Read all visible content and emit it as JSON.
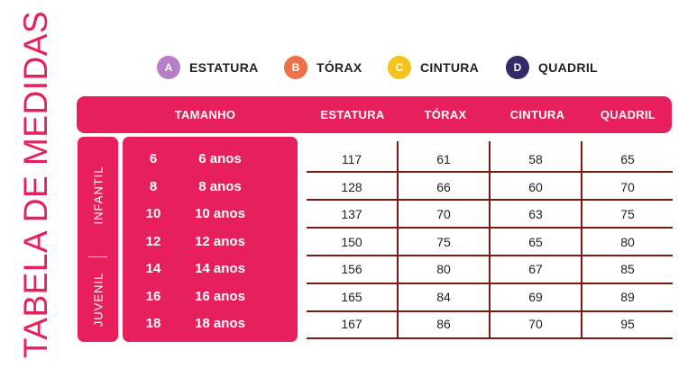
{
  "title": "TABELA DE MEDIDAS",
  "legend": [
    {
      "letter": "A",
      "label": "ESTATURA",
      "color": "#b77fc4"
    },
    {
      "letter": "B",
      "label": "TÓRAX",
      "color": "#ee7046"
    },
    {
      "letter": "C",
      "label": "CINTURA",
      "color": "#f6c21c"
    },
    {
      "letter": "D",
      "label": "QUADRIL",
      "color": "#332a6a"
    }
  ],
  "header": {
    "tamanho": "TAMANHO",
    "estatura": "ESTATURA",
    "torax": "TÓRAX",
    "cintura": "CINTURA",
    "quadril": "QUADRIL"
  },
  "groups": {
    "infantil": "INFANTIL",
    "juvenil": "JUVENIL"
  },
  "rows": [
    {
      "size": "6",
      "age": "6 anos",
      "estatura": "117",
      "torax": "61",
      "cintura": "58",
      "quadril": "65"
    },
    {
      "size": "8",
      "age": "8 anos",
      "estatura": "128",
      "torax": "66",
      "cintura": "60",
      "quadril": "70"
    },
    {
      "size": "10",
      "age": "10 anos",
      "estatura": "137",
      "torax": "70",
      "cintura": "63",
      "quadril": "75"
    },
    {
      "size": "12",
      "age": "12 anos",
      "estatura": "150",
      "torax": "75",
      "cintura": "65",
      "quadril": "80"
    },
    {
      "size": "14",
      "age": "14 anos",
      "estatura": "156",
      "torax": "80",
      "cintura": "67",
      "quadril": "85"
    },
    {
      "size": "16",
      "age": "16 anos",
      "estatura": "165",
      "torax": "84",
      "cintura": "69",
      "quadril": "89"
    },
    {
      "size": "18",
      "age": "18 anos",
      "estatura": "167",
      "torax": "86",
      "cintura": "70",
      "quadril": "95"
    }
  ]
}
